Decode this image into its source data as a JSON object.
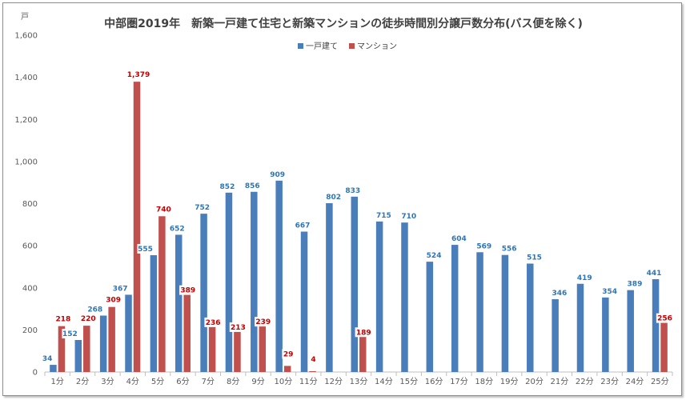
{
  "chart_data": {
    "type": "bar",
    "title": "中部圏2019年　新築一戸建て住宅と新築マンションの徒歩時間別分譲戸数分布(バス便を除く)",
    "y_unit": "戸",
    "ylim": [
      0,
      1600
    ],
    "yticks": [
      "0",
      "200",
      "400",
      "600",
      "800",
      "1,000",
      "1,200",
      "1,400",
      "1,600"
    ],
    "grid": false,
    "legend_position": "top-center",
    "categories": [
      "1分",
      "2分",
      "3分",
      "4分",
      "5分",
      "6分",
      "7分",
      "8分",
      "9分",
      "10分",
      "11分",
      "12分",
      "13分",
      "14分",
      "15分",
      "16分",
      "17分",
      "18分",
      "19分",
      "20分",
      "21分",
      "22分",
      "23分",
      "24分",
      "25分"
    ],
    "series": [
      {
        "name": "一戸建て",
        "color": "#4a7ebb",
        "label_color": "#2e75b6",
        "values": [
          34,
          152,
          268,
          367,
          555,
          652,
          752,
          852,
          856,
          909,
          667,
          802,
          833,
          715,
          710,
          524,
          604,
          569,
          556,
          515,
          346,
          419,
          354,
          389,
          441
        ],
        "labels": [
          "34",
          "152",
          "268",
          "367",
          "555",
          "652",
          "752",
          "852",
          "856",
          "909",
          "667",
          "802",
          "833",
          "715",
          "710",
          "524",
          "604",
          "569",
          "556",
          "515",
          "346",
          "419",
          "354",
          "389",
          "441"
        ]
      },
      {
        "name": "マンション",
        "color": "#c0504d",
        "label_color": "#c00000",
        "values": [
          218,
          220,
          309,
          1379,
          740,
          389,
          236,
          213,
          239,
          29,
          4,
          null,
          189,
          null,
          null,
          null,
          null,
          null,
          null,
          null,
          null,
          null,
          null,
          null,
          256
        ],
        "labels": [
          "218",
          "220",
          "309",
          "1,379",
          "740",
          "389",
          "236",
          "213",
          "239",
          "29",
          "4",
          "",
          "189",
          "",
          "",
          "",
          "",
          "",
          "",
          "",
          "",
          "",
          "",
          "",
          "256"
        ]
      }
    ]
  }
}
